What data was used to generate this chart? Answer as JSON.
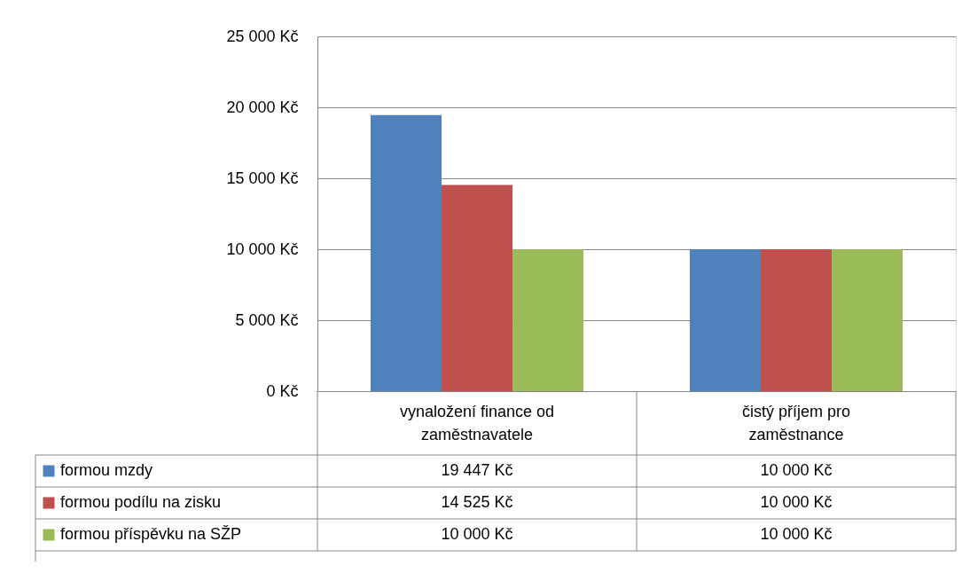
{
  "chart_data": {
    "type": "bar",
    "categories": [
      "vynaložení finance od zaměstnavatele",
      "čistý příjem pro zaměstnance"
    ],
    "series": [
      {
        "name": "formou mzdy",
        "color": "#4f81bd",
        "values": [
          19447,
          10000
        ],
        "value_labels": [
          "19 447 Kč",
          "10 000 Kč"
        ]
      },
      {
        "name": "formou podílu na zisku",
        "color": "#c0504d",
        "values": [
          14525,
          10000
        ],
        "value_labels": [
          "14 525 Kč",
          "10 000 Kč"
        ]
      },
      {
        "name": "formou příspěvku na SŽP",
        "color": "#9bbb59",
        "values": [
          10000,
          10000
        ],
        "value_labels": [
          "10 000 Kč",
          "10 000 Kč"
        ]
      }
    ],
    "ylim": [
      0,
      25000
    ],
    "yticks": [
      {
        "value": 0,
        "label": "0 Kč"
      },
      {
        "value": 5000,
        "label": "5 000 Kč"
      },
      {
        "value": 10000,
        "label": "10 000 Kč"
      },
      {
        "value": 15000,
        "label": "15 000 Kč"
      },
      {
        "value": 20000,
        "label": "20 000 Kč"
      },
      {
        "value": 25000,
        "label": "25 000 Kč"
      }
    ],
    "grid": "y",
    "legend": "bottom left"
  }
}
